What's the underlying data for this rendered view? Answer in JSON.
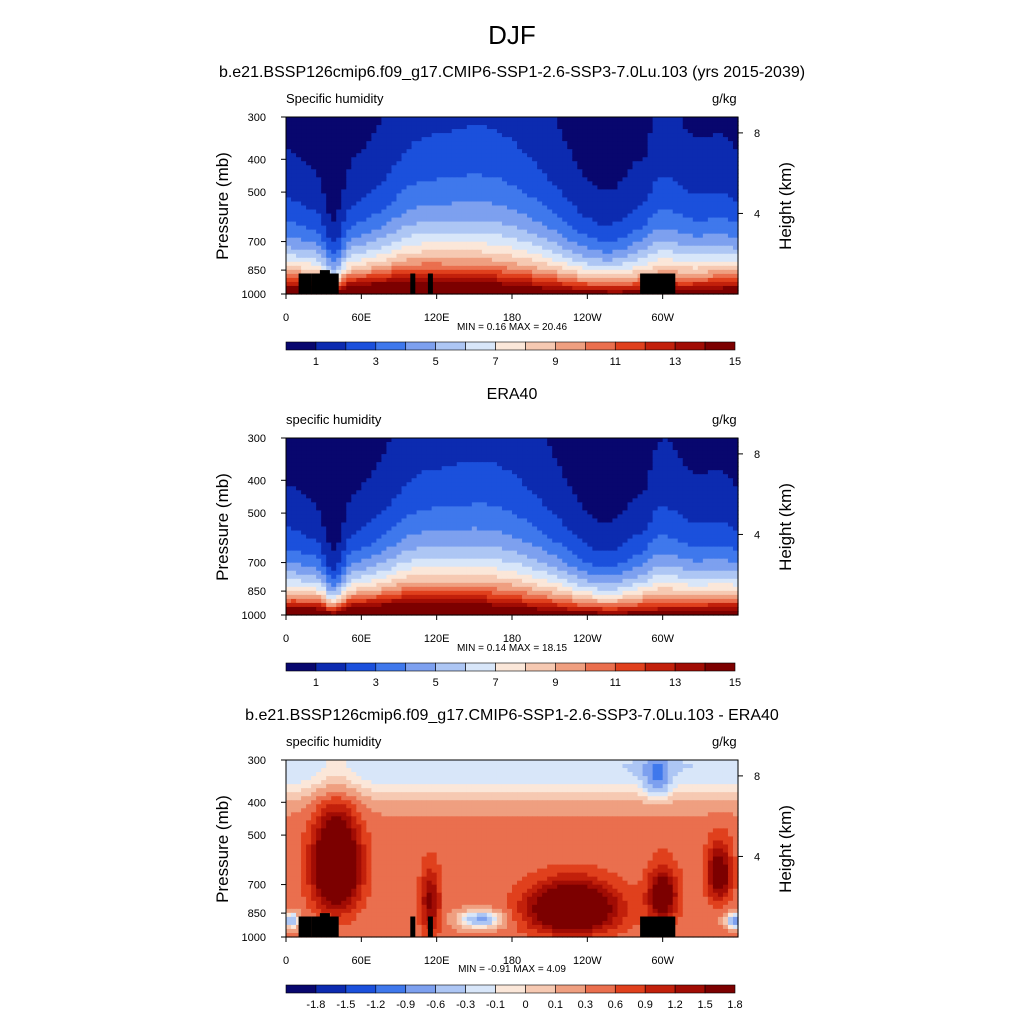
{
  "figure": {
    "title": "DJF",
    "case_title": "b.e21.BSSP126cmip6.f09_g17.CMIP6-SSP1-2.6-SSP3-7.0Lu.103 (yrs 2015-2039)"
  },
  "chart_data": [
    {
      "type": "heatmap",
      "panel_title": "",
      "left_string": "Specific humidity",
      "right_string": "g/kg",
      "xlabel": "",
      "ylabel": "Pressure (mb)",
      "y2label": "Height (km)",
      "x_ticks": [
        "0",
        "60E",
        "120E",
        "180",
        "120W",
        "60W"
      ],
      "y_ticks": [
        "300",
        "400",
        "500",
        "700",
        "850",
        "1000"
      ],
      "y2_ticks": [
        "8",
        "4"
      ],
      "xlim": [
        0,
        360
      ],
      "ylim": [
        1000,
        300
      ],
      "y_scale": "log",
      "min_max": "MIN =  0.16  MAX =  20.46",
      "min": 0.16,
      "max": 20.46,
      "colorbar_labels": [
        "1",
        "3",
        "5",
        "7",
        "9",
        "11",
        "13",
        "15"
      ],
      "topography": true,
      "field": "climatology"
    },
    {
      "type": "heatmap",
      "panel_title": "ERA40",
      "left_string": "specific humidity",
      "right_string": "g/kg",
      "xlabel": "",
      "ylabel": "Pressure (mb)",
      "y2label": "Height (km)",
      "x_ticks": [
        "0",
        "60E",
        "120E",
        "180",
        "120W",
        "60W"
      ],
      "y_ticks": [
        "300",
        "400",
        "500",
        "700",
        "850",
        "1000"
      ],
      "y2_ticks": [
        "8",
        "4"
      ],
      "xlim": [
        0,
        360
      ],
      "ylim": [
        1000,
        300
      ],
      "y_scale": "log",
      "min_max": "MIN =  0.14  MAX =  18.15",
      "min": 0.14,
      "max": 18.15,
      "colorbar_labels": [
        "1",
        "3",
        "5",
        "7",
        "9",
        "11",
        "13",
        "15"
      ],
      "topography": false,
      "field": "climatology"
    },
    {
      "type": "heatmap",
      "panel_title": "b.e21.BSSP126cmip6.f09_g17.CMIP6-SSP1-2.6-SSP3-7.0Lu.103 - ERA40",
      "left_string": "specific humidity",
      "right_string": "g/kg",
      "xlabel": "",
      "ylabel": "Pressure (mb)",
      "y2label": "Height (km)",
      "x_ticks": [
        "0",
        "60E",
        "120E",
        "180",
        "120W",
        "60W"
      ],
      "y_ticks": [
        "300",
        "400",
        "500",
        "700",
        "850",
        "1000"
      ],
      "y2_ticks": [
        "8",
        "4"
      ],
      "xlim": [
        0,
        360
      ],
      "ylim": [
        1000,
        300
      ],
      "y_scale": "log",
      "min_max": "MIN = -0.91  MAX =   4.09",
      "min": -0.91,
      "max": 4.09,
      "colorbar_labels": [
        "-1.8",
        "-1.5",
        "-1.2",
        "-0.9",
        "-0.6",
        "-0.3",
        "-0.1",
        "0",
        "0.1",
        "0.3",
        "0.6",
        "0.9",
        "1.2",
        "1.5",
        "1.8"
      ],
      "topography": true,
      "field": "difference"
    }
  ],
  "colors": {
    "palette": [
      "#08076e",
      "#0c2bb0",
      "#1b50dc",
      "#3f78ec",
      "#7da0ef",
      "#adc6f4",
      "#d8e6f9",
      "#fbe7d9",
      "#f6c9b2",
      "#ef9f80",
      "#ea6f4e",
      "#e0401d",
      "#c2200b",
      "#a10c04",
      "#7c0000"
    ],
    "land": "#000000"
  }
}
